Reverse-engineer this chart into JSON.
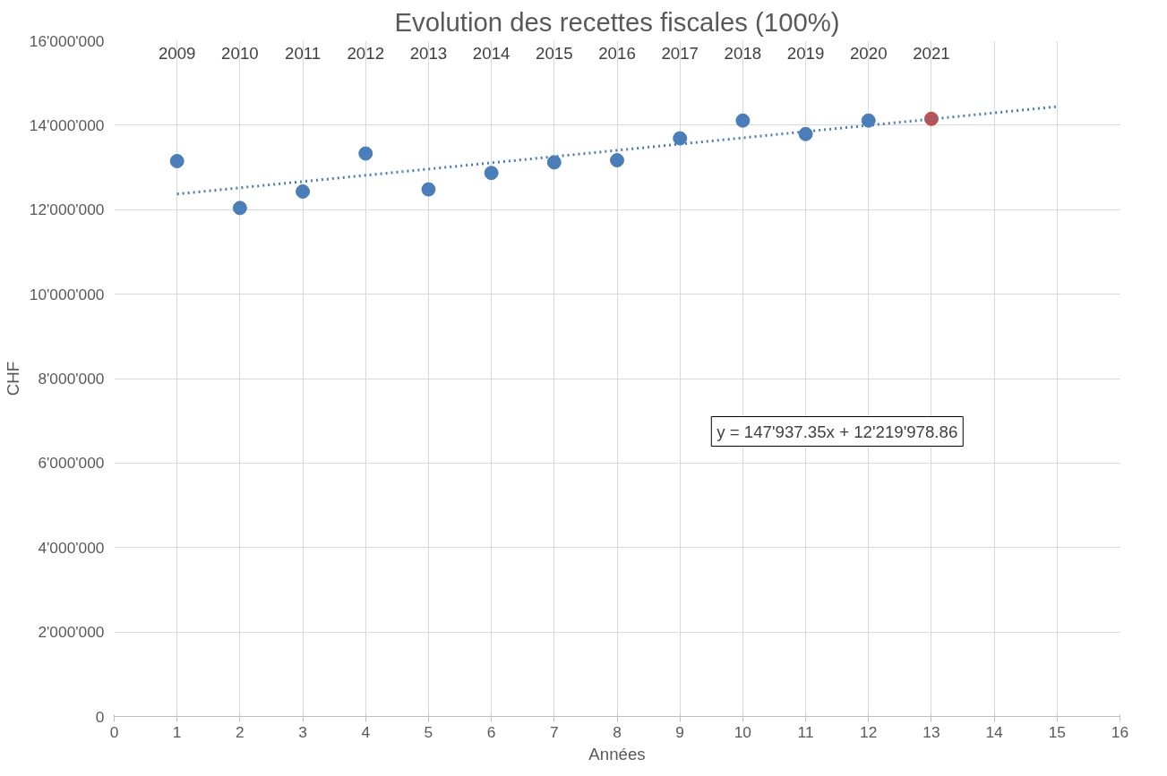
{
  "chart_data": {
    "type": "scatter",
    "title": "Evolution des recettes fiscales (100%)",
    "xlabel": "Années",
    "ylabel": "CHF",
    "xlim": [
      0,
      16
    ],
    "xticks": [
      0,
      1,
      2,
      3,
      4,
      5,
      6,
      7,
      8,
      9,
      10,
      11,
      12,
      13,
      14,
      15,
      16
    ],
    "ylim": [
      0,
      16000000
    ],
    "yticks": [
      {
        "value": 0,
        "label": "0"
      },
      {
        "value": 2000000,
        "label": "2'000'000"
      },
      {
        "value": 4000000,
        "label": "4'000'000"
      },
      {
        "value": 6000000,
        "label": "6'000'000"
      },
      {
        "value": 8000000,
        "label": "8'000'000"
      },
      {
        "value": 10000000,
        "label": "10'000'000"
      },
      {
        "value": 12000000,
        "label": "12'000'000"
      },
      {
        "value": 14000000,
        "label": "14'000'000"
      },
      {
        "value": 16000000,
        "label": "16'000'000"
      }
    ],
    "grid": true,
    "marker": "circle",
    "series": [
      {
        "color": "#4a7ebb",
        "colors": [
          "#4a7ebb",
          "#4a7ebb",
          "#4a7ebb",
          "#4a7ebb",
          "#4a7ebb",
          "#4a7ebb",
          "#4a7ebb",
          "#4a7ebb",
          "#4a7ebb",
          "#4a7ebb",
          "#4a7ebb",
          "#4a7ebb",
          "#c0504d"
        ],
        "x": [
          1,
          2,
          3,
          4,
          5,
          6,
          7,
          8,
          9,
          10,
          11,
          12,
          13
        ],
        "values": [
          13150000,
          12040000,
          12430000,
          13330000,
          12480000,
          12870000,
          13120000,
          13170000,
          13690000,
          14110000,
          13790000,
          14110000,
          14150000
        ]
      },
      {
        "type": "line",
        "color": "#4a7ebb",
        "line_style": "dotted",
        "marker": "none",
        "x": [
          1,
          15
        ],
        "values": [
          12370000,
          14440000
        ]
      }
    ],
    "annotations": [
      "2009",
      "2010",
      "2011",
      "2012",
      "2013",
      "2014",
      "2015",
      "2016",
      "2017",
      "2018",
      "2019",
      "2020",
      "2021",
      "y = 147'937.35x + 12'219'978.86"
    ]
  }
}
